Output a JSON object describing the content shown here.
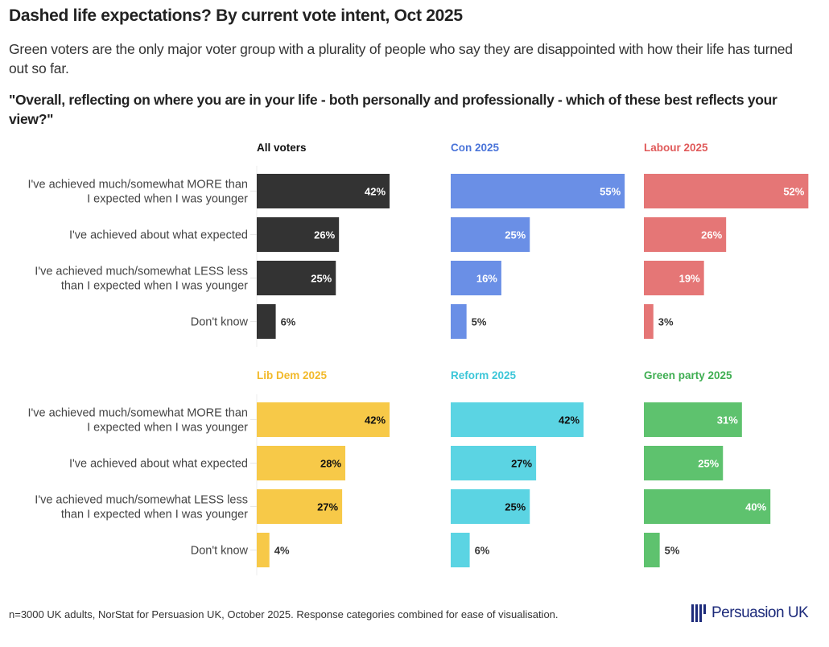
{
  "title": "Dashed life expectations? By current vote intent, Oct 2025",
  "subtitle": "Green voters are the only major voter group with a plurality of people who say they are disappointed with how their life has turned out so far.",
  "question": "\"Overall, reflecting on where you are in your life - both personally and professionally - which of these best reflects your view?\"",
  "footer": {
    "note": "n=3000 UK adults, NorStat for Persuasion UK, October 2025. Response categories combined for ease of visualisation.",
    "logo_text": "Persuasion UK",
    "logo_icon": "bars-logo-icon"
  },
  "chart_data": {
    "type": "bar",
    "orientation": "horizontal",
    "layout": "small-multiples 2x3",
    "categories": [
      "I've achieved much/somewhat MORE than I expected when I was younger",
      "I've achieved about what expected",
      "I've achieved much/somewhat LESS less than I expected when I was younger",
      "Don't know"
    ],
    "category_lines": [
      [
        "I've achieved much/somewhat MORE than",
        "I expected when I was younger"
      ],
      [
        "I've achieved about what expected"
      ],
      [
        "I've achieved much/somewhat LESS less",
        "than I expected when I was younger"
      ],
      [
        "Don't know"
      ]
    ],
    "unit": "%",
    "xlim": [
      0,
      55
    ],
    "grid": false,
    "series": [
      {
        "name": "All voters",
        "color": "#333333",
        "title_color": "#111111",
        "label_color": "#ffffff",
        "values": [
          42,
          26,
          25,
          6
        ]
      },
      {
        "name": "Con 2025",
        "color": "#6a8fe6",
        "title_color": "#4a74d9",
        "label_color": "#ffffff",
        "values": [
          55,
          25,
          16,
          5
        ]
      },
      {
        "name": "Labour 2025",
        "color": "#e57676",
        "title_color": "#e05a5a",
        "label_color": "#ffffff",
        "values": [
          52,
          26,
          19,
          3
        ]
      },
      {
        "name": "Lib Dem 2025",
        "color": "#f7c948",
        "title_color": "#f2b92a",
        "label_color": "#111111",
        "values": [
          42,
          28,
          27,
          4
        ]
      },
      {
        "name": "Reform 2025",
        "color": "#5bd4e3",
        "title_color": "#3cc6d8",
        "label_color": "#111111",
        "values": [
          42,
          27,
          25,
          6
        ]
      },
      {
        "name": "Green party 2025",
        "color": "#5ec26e",
        "title_color": "#3fae52",
        "label_color": "#ffffff",
        "values": [
          31,
          25,
          40,
          5
        ]
      }
    ],
    "value_labels": [
      [
        "42%",
        "26%",
        "25%",
        "6%"
      ],
      [
        "55%",
        "25%",
        "16%",
        "5%"
      ],
      [
        "52%",
        "26%",
        "19%",
        "3%"
      ],
      [
        "42%",
        "28%",
        "27%",
        "4%"
      ],
      [
        "42%",
        "27%",
        "25%",
        "6%"
      ],
      [
        "31%",
        "25%",
        "40%",
        "5%"
      ]
    ]
  }
}
